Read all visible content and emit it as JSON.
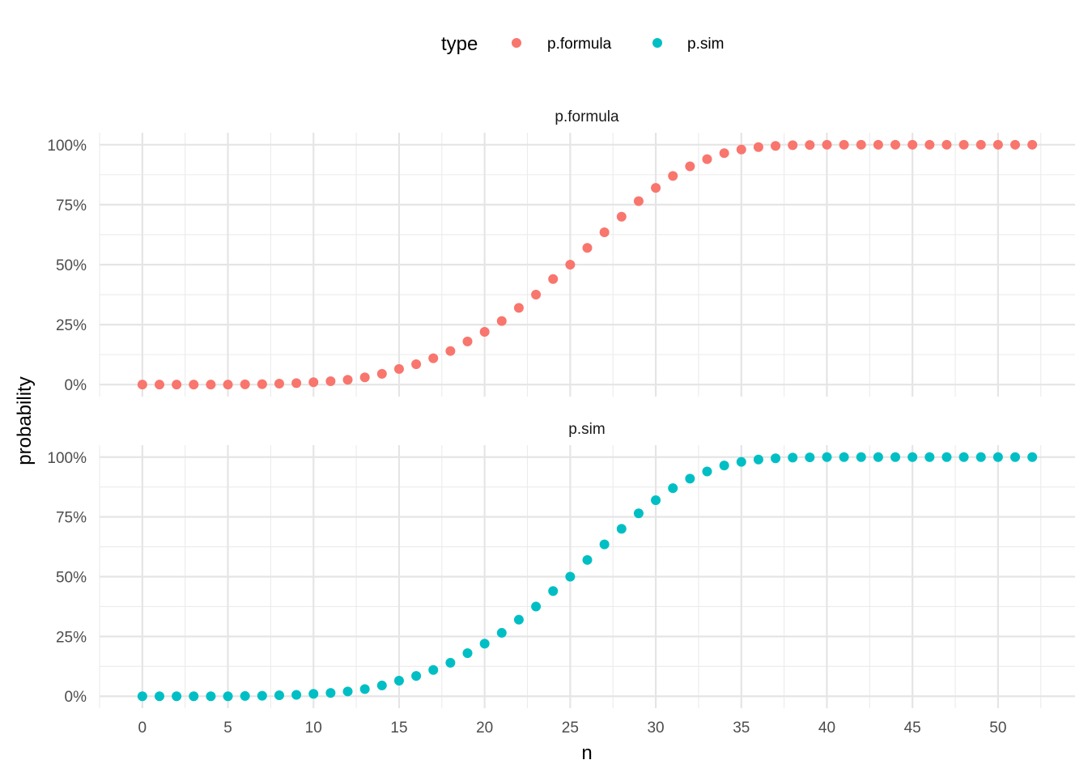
{
  "chart_data": {
    "type": "scatter",
    "facet_by": "type",
    "xlabel": "n",
    "ylabel": "probability",
    "xlim": [
      -2.5,
      54.5
    ],
    "ylim": [
      -0.05,
      1.05
    ],
    "x_ticks": [
      0,
      5,
      10,
      15,
      20,
      25,
      30,
      35,
      40,
      45,
      50
    ],
    "y_ticks": [
      0,
      0.25,
      0.5,
      0.75,
      1.0
    ],
    "y_tick_labels": [
      "0%",
      "25%",
      "50%",
      "75%",
      "100%"
    ],
    "grid": true,
    "legend": {
      "title": "type",
      "position": "top",
      "entries": [
        {
          "label": "p.formula",
          "color": "#F8766D"
        },
        {
          "label": "p.sim",
          "color": "#00BFC4"
        }
      ]
    },
    "x": [
      0,
      1,
      2,
      3,
      4,
      5,
      6,
      7,
      8,
      9,
      10,
      11,
      12,
      13,
      14,
      15,
      16,
      17,
      18,
      19,
      20,
      21,
      22,
      23,
      24,
      25,
      26,
      27,
      28,
      29,
      30,
      31,
      32,
      33,
      34,
      35,
      36,
      37,
      38,
      39,
      40,
      41,
      42,
      43,
      44,
      45,
      46,
      47,
      48,
      49,
      50,
      51,
      52
    ],
    "series": [
      {
        "name": "p.formula",
        "strip_label": "p.formula",
        "color": "#F8766D",
        "values": [
          0,
          0,
          0,
          0,
          0,
          0,
          0.001,
          0.002,
          0.004,
          0.006,
          0.01,
          0.014,
          0.02,
          0.03,
          0.045,
          0.065,
          0.085,
          0.11,
          0.14,
          0.18,
          0.22,
          0.265,
          0.32,
          0.375,
          0.44,
          0.5,
          0.57,
          0.635,
          0.7,
          0.765,
          0.82,
          0.87,
          0.91,
          0.94,
          0.965,
          0.98,
          0.99,
          0.995,
          0.998,
          0.999,
          1,
          1,
          1,
          1,
          1,
          1,
          1,
          1,
          1,
          1,
          1,
          1,
          1
        ]
      },
      {
        "name": "p.sim",
        "strip_label": "p.sim",
        "color": "#00BFC4",
        "values": [
          0,
          0,
          0,
          0,
          0,
          0,
          0.001,
          0.002,
          0.004,
          0.006,
          0.01,
          0.014,
          0.02,
          0.03,
          0.045,
          0.065,
          0.085,
          0.11,
          0.14,
          0.18,
          0.22,
          0.265,
          0.32,
          0.375,
          0.44,
          0.5,
          0.57,
          0.635,
          0.7,
          0.765,
          0.82,
          0.87,
          0.91,
          0.94,
          0.965,
          0.98,
          0.99,
          0.995,
          0.998,
          0.999,
          1,
          1,
          1,
          1,
          1,
          1,
          1,
          1,
          1,
          1,
          1,
          1,
          1
        ]
      }
    ]
  }
}
